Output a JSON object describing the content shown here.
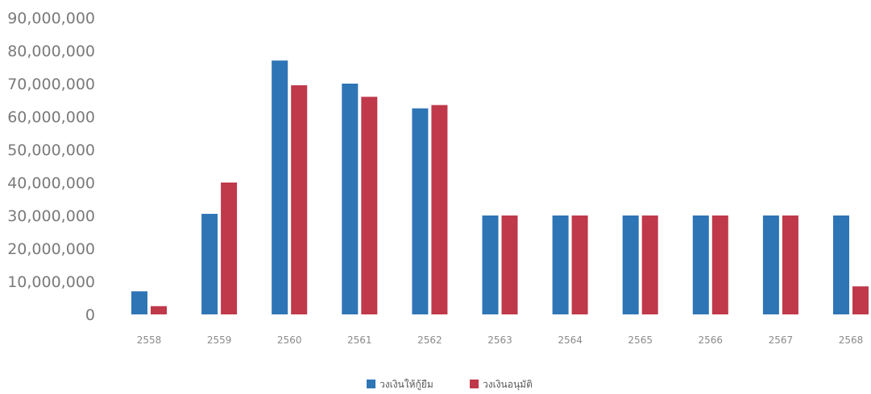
{
  "chart_data": {
    "type": "bar",
    "categories": [
      "2558",
      "2559",
      "2560",
      "2561",
      "2562",
      "2563",
      "2564",
      "2565",
      "2566",
      "2567",
      "2568"
    ],
    "series": [
      {
        "name": "วงเงินให้กู้ยืม",
        "color": "#2e75b6",
        "values": [
          7000000,
          30500000,
          77000000,
          70000000,
          62500000,
          30000000,
          30000000,
          30000000,
          30000000,
          30000000,
          30000000
        ]
      },
      {
        "name": "วงเงินอนุมัติ",
        "color": "#c0394b",
        "values": [
          2500000,
          40000000,
          69500000,
          66000000,
          63500000,
          30000000,
          30000000,
          30000000,
          30000000,
          30000000,
          8500000
        ]
      }
    ],
    "ylim": [
      0,
      90000000
    ],
    "yticks": [
      "0",
      "10,000,000",
      "20,000,000",
      "30,000,000",
      "40,000,000",
      "50,000,000",
      "60,000,000",
      "70,000,000",
      "80,000,000",
      "90,000,000"
    ],
    "title": "",
    "xlabel": "",
    "ylabel": "",
    "grid": false,
    "legend": "bottom-center"
  }
}
